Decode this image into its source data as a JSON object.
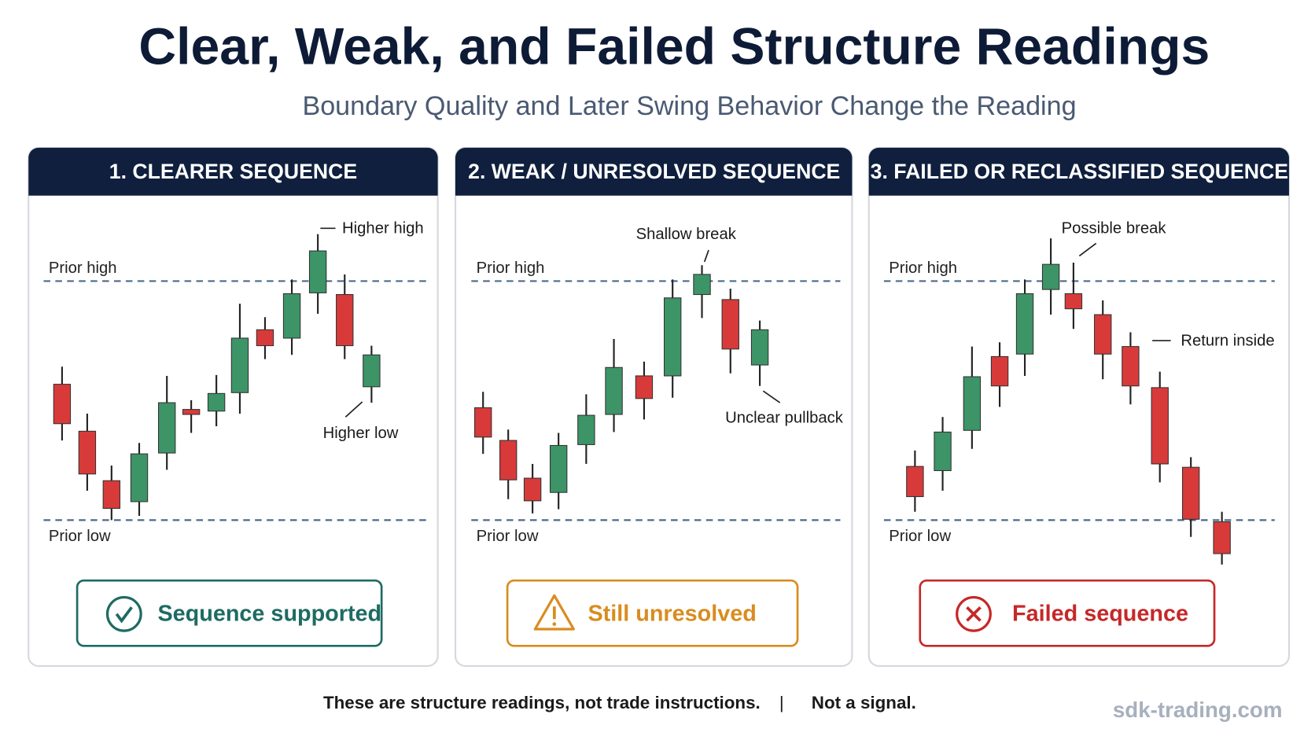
{
  "title": "Clear, Weak, and Failed Structure Readings",
  "subtitle": "Boundary Quality and Later Swing Behavior Change the Reading",
  "panels": [
    {
      "heading": "1. CLEARER SEQUENCE",
      "prior_high": "Prior high",
      "prior_low": "Prior low",
      "annotations": [
        "Higher high",
        "Higher low"
      ],
      "status": "Sequence supported"
    },
    {
      "heading": "2. WEAK / UNRESOLVED SEQUENCE",
      "prior_high": "Prior high",
      "prior_low": "Prior low",
      "annotations": [
        "Shallow break",
        "Unclear pullback"
      ],
      "status": "Still unresolved"
    },
    {
      "heading": "3. FAILED OR RECLASSIFIED SEQUENCE",
      "prior_high": "Prior high",
      "prior_low": "Prior low",
      "annotations": [
        "Possible break",
        "Return inside"
      ],
      "status": "Failed sequence"
    }
  ],
  "footer": {
    "note": "These are structure readings, not trade instructions.",
    "separator": "|",
    "disclaimer": "Not a signal."
  },
  "brand": "sdk-trading.com"
}
